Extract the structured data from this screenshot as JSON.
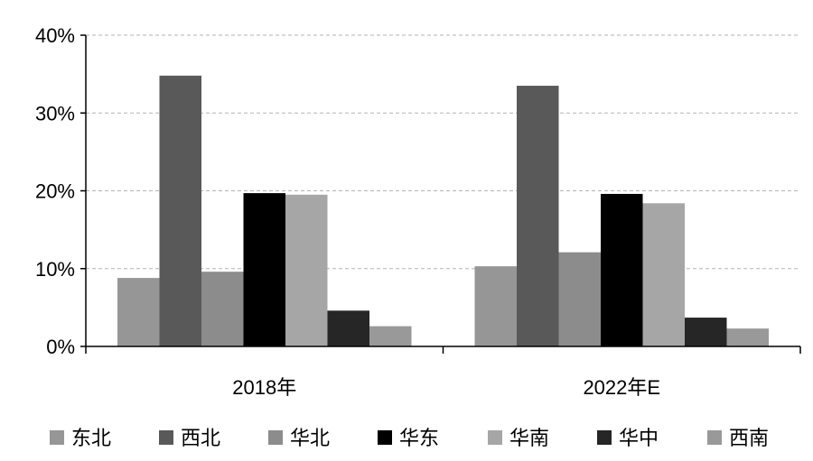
{
  "chart_data": {
    "type": "bar",
    "categories": [
      "2018年",
      "2022年E"
    ],
    "series": [
      {
        "name": "东北",
        "values": [
          8.8,
          10.3
        ],
        "color": "#969696"
      },
      {
        "name": "西北",
        "values": [
          34.8,
          33.5
        ],
        "color": "#595959"
      },
      {
        "name": "华北",
        "values": [
          9.6,
          12.1
        ],
        "color": "#8c8c8c"
      },
      {
        "name": "华东",
        "values": [
          19.7,
          19.6
        ],
        "color": "#000000"
      },
      {
        "name": "华南",
        "values": [
          19.5,
          18.4
        ],
        "color": "#a6a6a6"
      },
      {
        "name": "华中",
        "values": [
          4.6,
          3.7
        ],
        "color": "#262626"
      },
      {
        "name": "西南",
        "values": [
          2.6,
          2.3
        ],
        "color": "#999999"
      }
    ],
    "ylim": [
      0,
      40
    ],
    "yticks": [
      "0%",
      "10%",
      "20%",
      "30%",
      "40%"
    ],
    "ytick_values": [
      0,
      10,
      20,
      30,
      40
    ],
    "grid": true,
    "legend_position": "bottom",
    "title": "",
    "xlabel": "",
    "ylabel": ""
  }
}
